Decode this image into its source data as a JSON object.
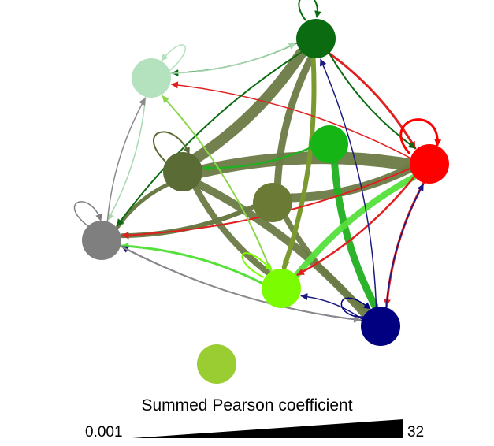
{
  "legend": {
    "title": "Summed Pearson coefficient",
    "min_label": "0.001",
    "max_label": "32"
  },
  "nodes": [
    {
      "id": "dark_green",
      "color": "#0b6b10"
    },
    {
      "id": "pale_green",
      "color": "#b4e2be"
    },
    {
      "id": "mid_green",
      "color": "#15b515"
    },
    {
      "id": "red",
      "color": "#ff0000"
    },
    {
      "id": "olive_dark",
      "color": "#5a6b35"
    },
    {
      "id": "olive",
      "color": "#6b7b35"
    },
    {
      "id": "gray",
      "color": "#7f7f7f"
    },
    {
      "id": "lime",
      "color": "#7cfc00"
    },
    {
      "id": "navy",
      "color": "#000080"
    },
    {
      "id": "yellow_green",
      "color": "#9acd32"
    }
  ],
  "edges": [
    {
      "from": "olive_dark",
      "to": "dark_green",
      "w": 14,
      "color": "#6b7b45"
    },
    {
      "from": "olive_dark",
      "to": "red",
      "w": 16,
      "color": "#6b7b45"
    },
    {
      "from": "olive_dark",
      "to": "lime",
      "w": 8,
      "color": "#6b7b45"
    },
    {
      "from": "olive_dark",
      "to": "navy",
      "w": 10,
      "color": "#6b7b45"
    },
    {
      "from": "olive_dark",
      "to": "gray",
      "w": 5,
      "color": "#6b7b45"
    },
    {
      "from": "olive",
      "to": "dark_green",
      "w": 9,
      "color": "#6b7b45"
    },
    {
      "from": "olive",
      "to": "red",
      "w": 11,
      "color": "#6b7b45"
    },
    {
      "from": "olive",
      "to": "gray",
      "w": 6,
      "color": "#6b7b45"
    },
    {
      "from": "olive",
      "to": "navy",
      "w": 7,
      "color": "#6b7b45"
    },
    {
      "from": "dark_green",
      "to": "lime",
      "w": 6,
      "color": "#7a9a30"
    },
    {
      "from": "mid_green",
      "to": "navy",
      "w": 9,
      "color": "#20b020"
    },
    {
      "from": "lime",
      "to": "red",
      "w": 8,
      "color": "#56e03c"
    },
    {
      "from": "lime",
      "to": "gray",
      "w": 3,
      "color": "#56e03c"
    },
    {
      "from": "dark_green",
      "to": "red",
      "w": 3,
      "color": "#e02020"
    },
    {
      "from": "red",
      "to": "navy",
      "w": 3,
      "color": "#e02020"
    },
    {
      "from": "red",
      "to": "gray",
      "w": 2,
      "color": "#e02020"
    },
    {
      "from": "red",
      "to": "pale_green",
      "w": 1.5,
      "color": "#e02020"
    },
    {
      "from": "red",
      "to": "lime",
      "w": 2.5,
      "color": "#e02020"
    },
    {
      "from": "dark_green",
      "to": "gray",
      "w": 2,
      "color": "#0b6b10"
    },
    {
      "from": "dark_green",
      "to": "pale_green",
      "w": 1.5,
      "color": "#0b6b10"
    },
    {
      "from": "dark_green",
      "to": "red",
      "w": 2,
      "color": "#0b6b10"
    },
    {
      "from": "navy",
      "to": "gray",
      "w": 1.5,
      "color": "#1a1a80"
    },
    {
      "from": "navy",
      "to": "dark_green",
      "w": 1.5,
      "color": "#1a1a80"
    },
    {
      "from": "navy",
      "to": "red",
      "w": 1.5,
      "color": "#1a1a80"
    },
    {
      "from": "navy",
      "to": "lime",
      "w": 1.5,
      "color": "#1a1a80"
    },
    {
      "from": "pale_green",
      "to": "gray",
      "w": 1.5,
      "color": "#a8d8b0"
    },
    {
      "from": "pale_green",
      "to": "dark_green",
      "w": 1.5,
      "color": "#a8d8b0"
    },
    {
      "from": "gray",
      "to": "pale_green",
      "w": 1.5,
      "color": "#8a8a8a"
    },
    {
      "from": "gray",
      "to": "navy",
      "w": 2,
      "color": "#8a8a8a"
    },
    {
      "from": "mid_green",
      "to": "olive_dark",
      "w": 2.5,
      "color": "#20b020"
    },
    {
      "from": "lime",
      "to": "pale_green",
      "w": 2,
      "color": "#8bd64a"
    }
  ]
}
